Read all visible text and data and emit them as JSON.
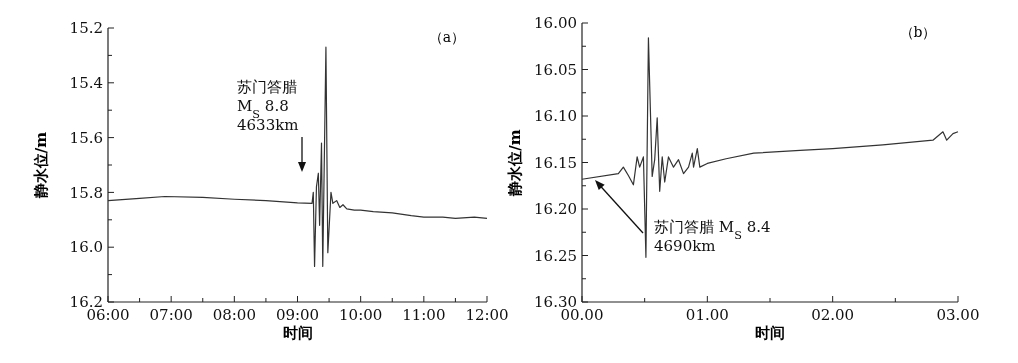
{
  "chart_data": [
    {
      "type": "line",
      "title": "（a）",
      "xlabel": "时间",
      "ylabel": "静水位/m",
      "x": [
        6,
        6.5,
        6.9,
        7.5,
        8,
        8.5,
        9,
        9.23,
        9.25,
        9.27,
        9.3,
        9.33,
        9.35,
        9.38,
        9.4,
        9.45,
        9.48,
        9.53,
        9.56,
        9.62,
        9.67,
        9.72,
        9.78,
        9.9,
        10,
        10.2,
        10.5,
        10.8,
        11,
        11.3,
        11.5,
        11.8,
        12
      ],
      "series": [
        {
          "color": "#333333",
          "values": [
            15.83,
            15.822,
            15.815,
            15.818,
            15.825,
            15.83,
            15.838,
            15.84,
            15.8,
            16.07,
            15.78,
            15.73,
            15.92,
            15.62,
            16.07,
            15.27,
            16.02,
            15.8,
            15.84,
            15.83,
            15.855,
            15.845,
            15.86,
            15.865,
            15.865,
            15.87,
            15.875,
            15.885,
            15.89,
            15.89,
            15.895,
            15.89,
            15.895
          ]
        }
      ],
      "xlim": [
        6,
        12
      ],
      "ylim": [
        16.2,
        15.2
      ],
      "xticks": [
        {
          "value": 6,
          "label": "06:00"
        },
        {
          "value": 6.5,
          "label": null
        },
        {
          "value": 7,
          "label": "07:00"
        },
        {
          "value": 7.5,
          "label": null
        },
        {
          "value": 8,
          "label": "08:00"
        },
        {
          "value": 8.5,
          "label": null
        },
        {
          "value": 9,
          "label": "09:00"
        },
        {
          "value": 9.5,
          "label": null
        },
        {
          "value": 10,
          "label": "10:00"
        },
        {
          "value": 10.5,
          "label": null
        },
        {
          "value": 11,
          "label": "11:00"
        },
        {
          "value": 11.5,
          "label": null
        },
        {
          "value": 12,
          "label": "12:00"
        }
      ],
      "yticks": [
        {
          "value": 15.2,
          "label": "15.2"
        },
        {
          "value": 15.3,
          "label": null
        },
        {
          "value": 15.4,
          "label": "15.4"
        },
        {
          "value": 15.5,
          "label": null
        },
        {
          "value": 15.6,
          "label": "15.6"
        },
        {
          "value": 15.7,
          "label": null
        },
        {
          "value": 15.8,
          "label": "15.8"
        },
        {
          "value": 15.9,
          "label": null
        },
        {
          "value": 16.0,
          "label": "16.0"
        },
        {
          "value": 16.1,
          "label": null
        },
        {
          "value": 16.2,
          "label": "16.2"
        }
      ],
      "annotations": [
        "苏门答腊\nM$_{S}$ 8.8\n4633km"
      ],
      "grid": false,
      "marker": "none",
      "line_style": "solid"
    },
    {
      "type": "line",
      "title": "（b）",
      "xlabel": "时间",
      "ylabel": "静水位/m",
      "x": [
        0,
        0.29,
        0.33,
        0.37,
        0.41,
        0.44,
        0.46,
        0.49,
        0.51,
        0.53,
        0.56,
        0.58,
        0.6,
        0.62,
        0.64,
        0.66,
        0.69,
        0.73,
        0.77,
        0.81,
        0.85,
        0.88,
        0.89,
        0.92,
        0.94,
        1.0,
        1.15,
        1.37,
        1.74,
        2.0,
        2.4,
        2.8,
        2.88,
        2.91,
        2.96,
        3.0
      ],
      "series": [
        {
          "color": "#333333",
          "values": [
            16.168,
            16.162,
            16.155,
            16.164,
            16.174,
            16.144,
            16.155,
            16.144,
            16.252,
            16.016,
            16.165,
            16.147,
            16.102,
            16.181,
            16.144,
            16.171,
            16.144,
            16.155,
            16.147,
            16.162,
            16.155,
            16.14,
            16.155,
            16.135,
            16.155,
            16.151,
            16.146,
            16.14,
            16.137,
            16.135,
            16.131,
            16.126,
            16.117,
            16.126,
            16.119,
            16.117
          ]
        }
      ],
      "xlim": [
        0,
        3
      ],
      "ylim": [
        16.3,
        16.0
      ],
      "xticks": [
        {
          "value": 0,
          "label": "00.00"
        },
        {
          "value": 0.5,
          "label": null
        },
        {
          "value": 1,
          "label": "01.00"
        },
        {
          "value": 1.5,
          "label": null
        },
        {
          "value": 2,
          "label": "02.00"
        },
        {
          "value": 2.5,
          "label": null
        },
        {
          "value": 3,
          "label": "03.00"
        }
      ],
      "yticks": [
        {
          "value": 16.0,
          "label": "16.00"
        },
        {
          "value": 16.025,
          "label": null
        },
        {
          "value": 16.05,
          "label": "16.05"
        },
        {
          "value": 16.075,
          "label": null
        },
        {
          "value": 16.1,
          "label": "16.10"
        },
        {
          "value": 16.125,
          "label": null
        },
        {
          "value": 16.15,
          "label": "16.15"
        },
        {
          "value": 16.175,
          "label": null
        },
        {
          "value": 16.2,
          "label": "16.20"
        },
        {
          "value": 16.225,
          "label": null
        },
        {
          "value": 16.25,
          "label": "16.25"
        },
        {
          "value": 16.275,
          "label": null
        },
        {
          "value": 16.3,
          "label": "16.30"
        }
      ],
      "annotations": [
        "苏门答腊 M$_{S}$ 8.4\n4690km"
      ],
      "grid": false,
      "marker": "none",
      "line_style": "solid"
    }
  ]
}
